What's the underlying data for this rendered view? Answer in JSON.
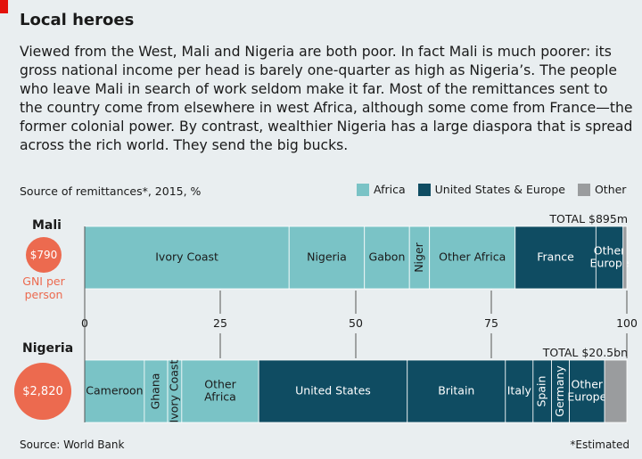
{
  "header": {
    "title": "Local heroes",
    "intro": "Viewed from the West, Mali and Nigeria are both poor. In fact Mali is much poorer: its gross national income per head is barely one-quarter as high as Nigeria’s. The people who leave Mali in search of work seldom make it far. Most of the remittances sent to the country come from elsewhere in west Africa, although some come from France—the former colonial power. By contrast, wealthier Nigeria has a large diaspora that is spread across the rich world. They send the big bucks."
  },
  "chart_data": {
    "type": "bar",
    "title": "Source of remittances*, 2015, %",
    "legend": [
      {
        "name": "Africa",
        "color": "#7ac3c6"
      },
      {
        "name": "United States & Europe",
        "color": "#0f4c62"
      },
      {
        "name": "Other",
        "color": "#9a9c9e"
      }
    ],
    "xlim": [
      0,
      100
    ],
    "ticks": [
      0,
      25,
      50,
      75,
      100
    ],
    "countries": [
      {
        "name": "Mali",
        "gni": "$790",
        "gni_label": [
          "GNI per",
          "person"
        ],
        "total": "TOTAL $895m",
        "segments": [
          {
            "label": "Ivory Coast",
            "value": 37.7,
            "group": "Africa"
          },
          {
            "label": "Nigeria",
            "value": 13.9,
            "group": "Africa"
          },
          {
            "label": "Gabon",
            "value": 8.3,
            "group": "Africa"
          },
          {
            "label": "Niger",
            "value": 3.7,
            "group": "Africa"
          },
          {
            "label": "Other Africa",
            "value": 15.8,
            "group": "Africa"
          },
          {
            "label": "France",
            "value": 14.9,
            "group": "United States & Europe"
          },
          {
            "label": "Other Europe",
            "value": 5.0,
            "group": "United States & Europe"
          },
          {
            "label": "",
            "value": 0.7,
            "group": "Other"
          }
        ]
      },
      {
        "name": "Nigeria",
        "gni": "$2,820",
        "total": "TOTAL $20.5bn",
        "segments": [
          {
            "label": "Cameroon",
            "value": 11.0,
            "group": "Africa"
          },
          {
            "label": "Ghana",
            "value": 4.3,
            "group": "Africa"
          },
          {
            "label": "Ivory Coast",
            "value": 2.6,
            "group": "Africa"
          },
          {
            "label": "Other Africa",
            "value": 14.2,
            "group": "Africa"
          },
          {
            "label": "United States",
            "value": 27.4,
            "group": "United States & Europe"
          },
          {
            "label": "Britain",
            "value": 18.1,
            "group": "United States & Europe"
          },
          {
            "label": "Italy",
            "value": 5.1,
            "group": "United States & Europe"
          },
          {
            "label": "Spain",
            "value": 3.4,
            "group": "United States & Europe"
          },
          {
            "label": "Germany",
            "value": 3.3,
            "group": "United States & Europe"
          },
          {
            "label": "Other Europe",
            "value": 6.5,
            "group": "United States & Europe"
          },
          {
            "label": "",
            "value": 4.1,
            "group": "Other"
          }
        ]
      }
    ]
  },
  "footer": {
    "source": "Source: World Bank",
    "note": "*Estimated"
  }
}
